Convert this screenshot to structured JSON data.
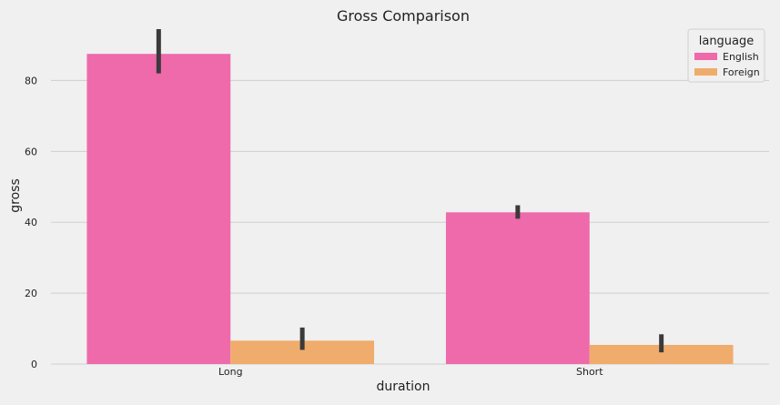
{
  "chart_data": {
    "type": "bar",
    "title": "Gross Comparison",
    "xlabel": "duration",
    "ylabel": "gross",
    "categories": [
      "Long",
      "Short"
    ],
    "ylim": [
      0,
      95
    ],
    "yticks": [
      "0",
      "20",
      "40",
      "60",
      "80"
    ],
    "grid": true,
    "legend": {
      "title": "language",
      "placement": "top-right"
    },
    "series": [
      {
        "name": "English",
        "color": "#ee6aaa",
        "values": [
          87.5,
          42.8
        ],
        "err_low": [
          82,
          41
        ],
        "err_high": [
          94.5,
          44.8
        ]
      },
      {
        "name": "Foreign",
        "color": "#f0ac6c",
        "values": [
          6.6,
          5.4
        ],
        "err_low": [
          4,
          3.3
        ],
        "err_high": [
          10.3,
          8.4
        ]
      }
    ]
  }
}
